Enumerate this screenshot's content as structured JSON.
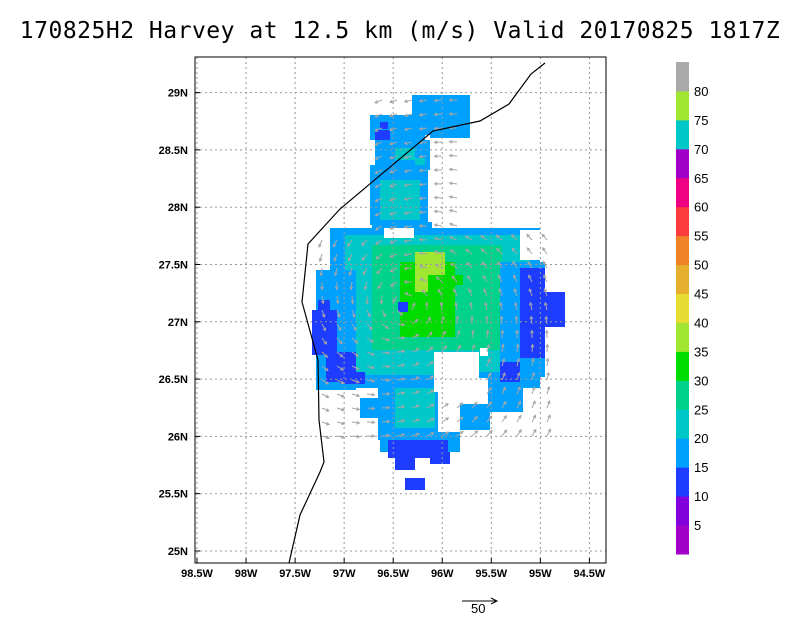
{
  "title": "170825H2 Harvey at 12.5 km (m/s) Valid 20170825 1817Z",
  "map": {
    "lon_labels": [
      "98.5W",
      "98W",
      "97.5W",
      "97W",
      "96.5W",
      "96W",
      "95.5W",
      "95W",
      "94.5W"
    ],
    "lat_labels": [
      "25N",
      "25.5N",
      "26N",
      "26.5N",
      "27N",
      "27.5N",
      "28N",
      "28.5N",
      "29N"
    ],
    "lon_range": [
      -98.5,
      -94.5
    ],
    "lat_range": [
      24.93,
      29.25
    ],
    "grid": true,
    "vector_reference": {
      "label": "50",
      "unit": "m/s"
    }
  },
  "colorbar": {
    "levels": [
      "5",
      "10",
      "15",
      "20",
      "25",
      "30",
      "35",
      "40",
      "45",
      "50",
      "55",
      "60",
      "65",
      "70",
      "75",
      "80"
    ],
    "colors": [
      "#a000c8",
      "#8200dc",
      "#1e3cff",
      "#00a0ff",
      "#00c8c8",
      "#00d28c",
      "#00dc00",
      "#a0e632",
      "#e6dc32",
      "#e6af2d",
      "#f08228",
      "#fa3c3c",
      "#f00082",
      "#a000c8",
      "#00c8c8",
      "#a0e632",
      "#aaaaaa"
    ]
  },
  "colors": {
    "coastline": "#000000",
    "vectors": "#a6a6a6",
    "grid": "#999999"
  }
}
